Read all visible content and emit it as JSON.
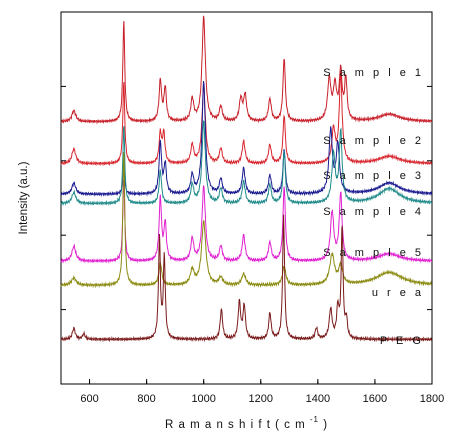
{
  "chart_data": {
    "type": "line",
    "xlabel": "R a m a n  s h i f t  ( c m",
    "xlabel_superscript": "-1",
    "xlabel_suffix": ")",
    "ylabel": "Intensity (a.u.)",
    "xlim": [
      500,
      1800
    ],
    "xticks": [
      600,
      800,
      1000,
      1200,
      1400,
      1600,
      1800
    ],
    "yticks_labeled": false,
    "grid": false,
    "legend": "labels beside each trace",
    "series": [
      {
        "name": "S a m p l e 1",
        "color": "#c8202a",
        "baseline": 0.705,
        "peaks": [
          [
            545,
            0.03,
            8
          ],
          [
            720,
            0.27,
            4
          ],
          [
            848,
            0.11,
            5
          ],
          [
            865,
            0.09,
            5
          ],
          [
            960,
            0.06,
            6
          ],
          [
            1000,
            0.28,
            7
          ],
          [
            1060,
            0.04,
            6
          ],
          [
            1130,
            0.06,
            6
          ],
          [
            1145,
            0.07,
            6
          ],
          [
            1232,
            0.06,
            6
          ],
          [
            1282,
            0.17,
            5
          ],
          [
            1440,
            0.11,
            7
          ],
          [
            1460,
            0.09,
            7
          ],
          [
            1480,
            0.13,
            6
          ],
          [
            1498,
            0.11,
            5
          ],
          [
            1650,
            0.02,
            45
          ]
        ]
      },
      {
        "name": "S a m p l e 2",
        "color": "#d8262e",
        "baseline": 0.592,
        "peaks": [
          [
            545,
            0.04,
            8
          ],
          [
            720,
            0.22,
            4
          ],
          [
            848,
            0.08,
            5
          ],
          [
            860,
            0.08,
            5
          ],
          [
            960,
            0.05,
            6
          ],
          [
            1000,
            0.21,
            7
          ],
          [
            1060,
            0.04,
            6
          ],
          [
            1140,
            0.06,
            6
          ],
          [
            1232,
            0.05,
            6
          ],
          [
            1282,
            0.13,
            5
          ],
          [
            1455,
            0.09,
            7
          ],
          [
            1480,
            0.24,
            6
          ],
          [
            1650,
            0.02,
            45
          ]
        ]
      },
      {
        "name": "S a m p l e 3",
        "color": "#1a1a90",
        "baseline": 0.51,
        "peaks": [
          [
            545,
            0.03,
            8
          ],
          [
            720,
            0.07,
            4
          ],
          [
            848,
            0.14,
            5
          ],
          [
            865,
            0.08,
            5
          ],
          [
            960,
            0.05,
            6
          ],
          [
            1000,
            0.3,
            7
          ],
          [
            1060,
            0.04,
            6
          ],
          [
            1140,
            0.07,
            6
          ],
          [
            1232,
            0.05,
            6
          ],
          [
            1282,
            0.12,
            5
          ],
          [
            1445,
            0.17,
            7
          ],
          [
            1470,
            0.13,
            7
          ],
          [
            1650,
            0.03,
            45
          ]
        ]
      },
      {
        "name": "S a m p l e  4",
        "color": "#1f8a8a",
        "baseline": 0.485,
        "peaks": [
          [
            545,
            0.03,
            8
          ],
          [
            720,
            0.21,
            4
          ],
          [
            848,
            0.09,
            5
          ],
          [
            960,
            0.05,
            6
          ],
          [
            1000,
            0.22,
            7
          ],
          [
            1060,
            0.04,
            6
          ],
          [
            1140,
            0.06,
            6
          ],
          [
            1232,
            0.05,
            6
          ],
          [
            1282,
            0.14,
            5
          ],
          [
            1455,
            0.13,
            7
          ],
          [
            1480,
            0.19,
            6
          ],
          [
            1650,
            0.04,
            45
          ]
        ]
      },
      {
        "name": "S a m p l e 5",
        "color": "#e020d0",
        "baseline": 0.33,
        "peaks": [
          [
            545,
            0.04,
            8
          ],
          [
            720,
            0.22,
            4
          ],
          [
            848,
            0.17,
            5
          ],
          [
            865,
            0.1,
            5
          ],
          [
            960,
            0.06,
            6
          ],
          [
            1000,
            0.2,
            7
          ],
          [
            1060,
            0.04,
            6
          ],
          [
            1140,
            0.07,
            6
          ],
          [
            1232,
            0.05,
            6
          ],
          [
            1282,
            0.2,
            5
          ],
          [
            1450,
            0.13,
            7
          ],
          [
            1480,
            0.18,
            6
          ],
          [
            1650,
            0.02,
            45
          ]
        ]
      },
      {
        "name": "u r e a",
        "color": "#8a8a10",
        "baseline": 0.265,
        "peaks": [
          [
            545,
            0.02,
            10
          ],
          [
            720,
            0.36,
            4
          ],
          [
            848,
            0.06,
            6
          ],
          [
            960,
            0.04,
            8
          ],
          [
            1000,
            0.17,
            9
          ],
          [
            1060,
            0.02,
            8
          ],
          [
            1140,
            0.03,
            8
          ],
          [
            1282,
            0.05,
            7
          ],
          [
            1450,
            0.08,
            10
          ],
          [
            1480,
            0.05,
            8
          ],
          [
            1650,
            0.035,
            55
          ]
        ]
      },
      {
        "name": "P E G",
        "color": "#7a1a1a",
        "baseline": 0.12,
        "peaks": [
          [
            545,
            0.03,
            6
          ],
          [
            580,
            0.015,
            5
          ],
          [
            845,
            0.27,
            4
          ],
          [
            862,
            0.22,
            4
          ],
          [
            1062,
            0.08,
            5
          ],
          [
            1125,
            0.1,
            5
          ],
          [
            1142,
            0.09,
            5
          ],
          [
            1232,
            0.07,
            5
          ],
          [
            1280,
            0.33,
            4
          ],
          [
            1395,
            0.03,
            5
          ],
          [
            1445,
            0.08,
            6
          ],
          [
            1470,
            0.08,
            5
          ],
          [
            1485,
            0.3,
            4
          ],
          [
            1500,
            0.05,
            4
          ]
        ]
      }
    ]
  }
}
